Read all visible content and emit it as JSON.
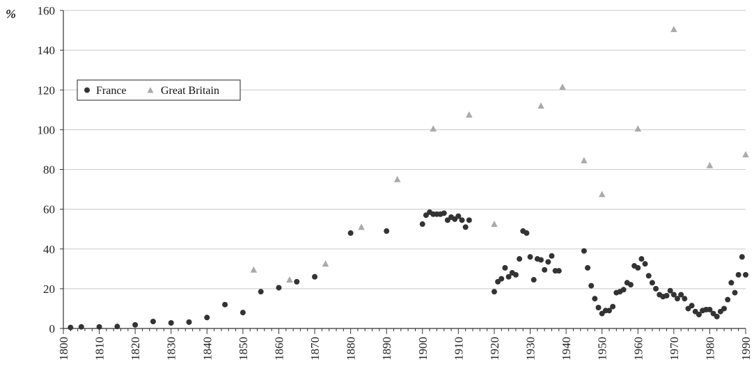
{
  "chart_data": {
    "type": "scatter",
    "ylabel": "%",
    "xlim": [
      1800,
      1990
    ],
    "ylim": [
      0,
      160
    ],
    "x_ticks": [
      1800,
      1810,
      1820,
      1830,
      1840,
      1850,
      1860,
      1870,
      1880,
      1890,
      1900,
      1910,
      1920,
      1930,
      1940,
      1950,
      1960,
      1970,
      1980,
      1990
    ],
    "y_ticks": [
      0,
      20,
      40,
      60,
      80,
      100,
      120,
      140,
      160
    ],
    "grid": "horizontal",
    "legend_position": "upper-left",
    "series": [
      {
        "name": "France",
        "marker": "circle",
        "color": "#333333",
        "points": [
          [
            1802,
            0.5
          ],
          [
            1805,
            0.8
          ],
          [
            1810,
            0.8
          ],
          [
            1815,
            1.0
          ],
          [
            1820,
            1.8
          ],
          [
            1825,
            3.5
          ],
          [
            1830,
            2.8
          ],
          [
            1835,
            3.2
          ],
          [
            1840,
            5.5
          ],
          [
            1845,
            12.0
          ],
          [
            1850,
            8.0
          ],
          [
            1855,
            18.5
          ],
          [
            1860,
            20.5
          ],
          [
            1865,
            23.5
          ],
          [
            1870,
            26.0
          ],
          [
            1880,
            48.0
          ],
          [
            1890,
            49.0
          ],
          [
            1900,
            52.5
          ],
          [
            1901,
            57.0
          ],
          [
            1902,
            58.5
          ],
          [
            1903,
            57.5
          ],
          [
            1904,
            57.5
          ],
          [
            1905,
            57.5
          ],
          [
            1906,
            58.0
          ],
          [
            1907,
            54.5
          ],
          [
            1908,
            56.0
          ],
          [
            1909,
            55.0
          ],
          [
            1910,
            56.5
          ],
          [
            1911,
            54.5
          ],
          [
            1912,
            51.0
          ],
          [
            1913,
            54.5
          ],
          [
            1920,
            18.5
          ],
          [
            1921,
            23.5
          ],
          [
            1922,
            25.0
          ],
          [
            1923,
            30.5
          ],
          [
            1924,
            26.0
          ],
          [
            1925,
            28.0
          ],
          [
            1926,
            27.0
          ],
          [
            1927,
            35.0
          ],
          [
            1928,
            49.0
          ],
          [
            1929,
            48.0
          ],
          [
            1930,
            36.0
          ],
          [
            1931,
            24.5
          ],
          [
            1932,
            35.0
          ],
          [
            1933,
            34.5
          ],
          [
            1934,
            29.5
          ],
          [
            1935,
            33.5
          ],
          [
            1936,
            36.5
          ],
          [
            1937,
            29.0
          ],
          [
            1938,
            29.0
          ],
          [
            1945,
            39.0
          ],
          [
            1946,
            30.5
          ],
          [
            1947,
            21.5
          ],
          [
            1948,
            15.0
          ],
          [
            1949,
            10.5
          ],
          [
            1950,
            7.5
          ],
          [
            1951,
            9.0
          ],
          [
            1952,
            9.0
          ],
          [
            1953,
            11.0
          ],
          [
            1954,
            18.0
          ],
          [
            1955,
            18.5
          ],
          [
            1956,
            19.5
          ],
          [
            1957,
            23.0
          ],
          [
            1958,
            22.0
          ],
          [
            1959,
            31.5
          ],
          [
            1960,
            30.5
          ],
          [
            1961,
            35.0
          ],
          [
            1962,
            32.5
          ],
          [
            1963,
            26.5
          ],
          [
            1964,
            23.0
          ],
          [
            1965,
            20.0
          ],
          [
            1966,
            17.0
          ],
          [
            1967,
            16.0
          ],
          [
            1968,
            16.5
          ],
          [
            1969,
            19.0
          ],
          [
            1970,
            17.0
          ],
          [
            1971,
            15.0
          ],
          [
            1972,
            17.0
          ],
          [
            1973,
            15.0
          ],
          [
            1974,
            10.0
          ],
          [
            1975,
            11.5
          ],
          [
            1976,
            8.5
          ],
          [
            1977,
            7.0
          ],
          [
            1978,
            9.0
          ],
          [
            1979,
            9.5
          ],
          [
            1980,
            9.5
          ],
          [
            1981,
            7.5
          ],
          [
            1982,
            6.0
          ],
          [
            1983,
            8.5
          ],
          [
            1984,
            10.0
          ],
          [
            1985,
            14.5
          ],
          [
            1986,
            23.0
          ],
          [
            1987,
            18.0
          ],
          [
            1988,
            27.0
          ],
          [
            1989,
            36.0
          ],
          [
            1990,
            27.0
          ]
        ]
      },
      {
        "name": "Great Britain",
        "marker": "triangle",
        "color": "#aaaaaa",
        "points": [
          [
            1853,
            29.5
          ],
          [
            1863,
            24.5
          ],
          [
            1873,
            32.5
          ],
          [
            1883,
            51.0
          ],
          [
            1893,
            75.0
          ],
          [
            1903,
            100.5
          ],
          [
            1913,
            107.5
          ],
          [
            1920,
            52.5
          ],
          [
            1933,
            112.0
          ],
          [
            1939,
            121.5
          ],
          [
            1945,
            84.5
          ],
          [
            1950,
            67.5
          ],
          [
            1960,
            100.5
          ],
          [
            1970,
            150.5
          ],
          [
            1980,
            82.0
          ],
          [
            1990,
            87.5
          ]
        ]
      }
    ]
  }
}
